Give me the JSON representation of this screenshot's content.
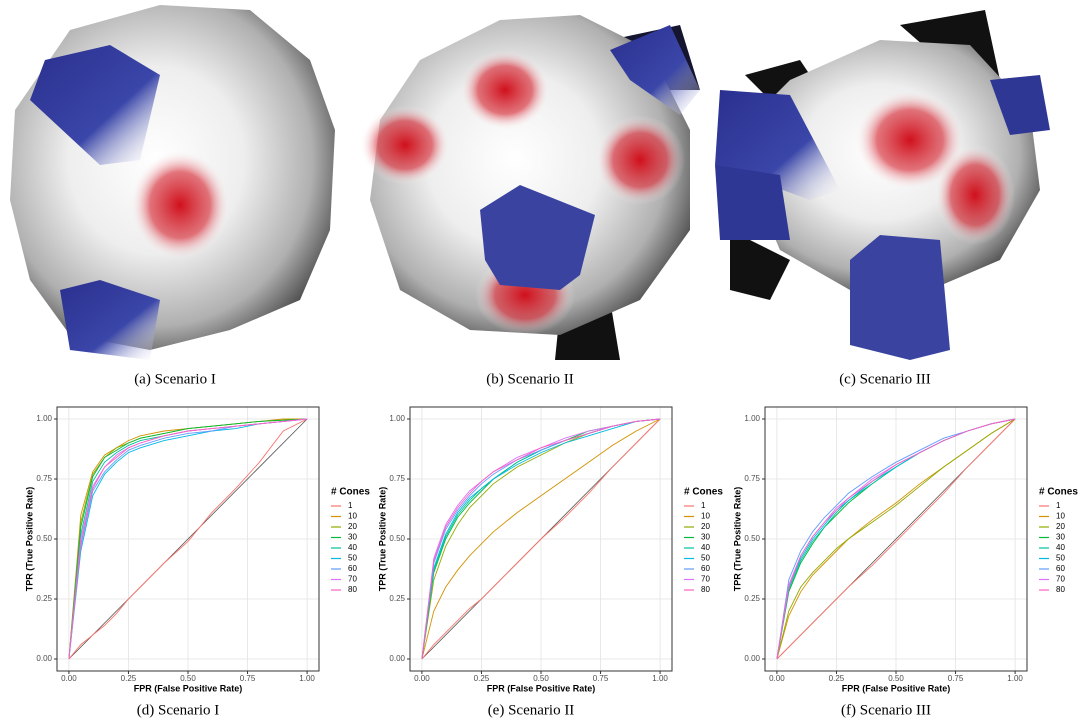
{
  "figures": [
    {
      "caption": "(a) Scenario I"
    },
    {
      "caption": "(b) Scenario II"
    },
    {
      "caption": "(c) Scenario III"
    }
  ],
  "chart_data": [
    {
      "type": "line",
      "caption": "(d) Scenario I",
      "x_label": "FPR (False Positive Rate)",
      "y_label": "TPR (True Positive Rate)",
      "legend_title": "# Cones",
      "legend": "right",
      "grid": true,
      "xlim": [
        -0.05,
        1.05
      ],
      "ylim": [
        -0.05,
        1.05
      ],
      "xticks": [
        {
          "value": 0,
          "label": "0.00"
        },
        {
          "value": 0.25,
          "label": "0.25"
        },
        {
          "value": 0.5,
          "label": "0.50"
        },
        {
          "value": 0.75,
          "label": "0.75"
        },
        {
          "value": 1,
          "label": "1.00"
        }
      ],
      "yticks": [
        {
          "value": 0,
          "label": "0.00"
        },
        {
          "value": 0.25,
          "label": "0.25"
        },
        {
          "value": 0.5,
          "label": "0.50"
        },
        {
          "value": 0.75,
          "label": "0.75"
        },
        {
          "value": 1,
          "label": "1.00"
        }
      ],
      "x": [
        0,
        0.05,
        0.1,
        0.15,
        0.2,
        0.25,
        0.3,
        0.4,
        0.5,
        0.6,
        0.7,
        0.8,
        0.9,
        1
      ],
      "series": [
        {
          "name": "1",
          "color": "#F8766D",
          "values": [
            0,
            0.06,
            0.1,
            0.14,
            0.19,
            0.25,
            0.3,
            0.4,
            0.49,
            0.61,
            0.71,
            0.82,
            0.95,
            1
          ]
        },
        {
          "name": "10",
          "color": "#D39200",
          "values": [
            0,
            0.6,
            0.78,
            0.85,
            0.88,
            0.91,
            0.93,
            0.95,
            0.96,
            0.97,
            0.98,
            0.99,
            1,
            1
          ]
        },
        {
          "name": "20",
          "color": "#93AA00",
          "values": [
            0,
            0.57,
            0.77,
            0.84,
            0.88,
            0.9,
            0.92,
            0.94,
            0.96,
            0.97,
            0.98,
            0.99,
            0.995,
            1
          ]
        },
        {
          "name": "30",
          "color": "#00BA38",
          "values": [
            0,
            0.55,
            0.76,
            0.84,
            0.87,
            0.9,
            0.92,
            0.94,
            0.96,
            0.97,
            0.98,
            0.99,
            0.995,
            1
          ]
        },
        {
          "name": "40",
          "color": "#00C19F",
          "values": [
            0,
            0.52,
            0.74,
            0.82,
            0.86,
            0.89,
            0.91,
            0.93,
            0.95,
            0.96,
            0.97,
            0.98,
            0.99,
            1
          ]
        },
        {
          "name": "50",
          "color": "#00B9E3",
          "values": [
            0,
            0.45,
            0.68,
            0.77,
            0.82,
            0.86,
            0.88,
            0.91,
            0.93,
            0.95,
            0.96,
            0.98,
            0.99,
            1
          ]
        },
        {
          "name": "60",
          "color": "#619CFF",
          "values": [
            0,
            0.47,
            0.7,
            0.78,
            0.83,
            0.87,
            0.89,
            0.92,
            0.94,
            0.95,
            0.97,
            0.98,
            0.99,
            1
          ]
        },
        {
          "name": "70",
          "color": "#DB72FB",
          "values": [
            0,
            0.5,
            0.72,
            0.8,
            0.85,
            0.88,
            0.9,
            0.93,
            0.95,
            0.96,
            0.97,
            0.98,
            0.99,
            1
          ]
        },
        {
          "name": "80",
          "color": "#FF61C3",
          "values": [
            0,
            0.48,
            0.71,
            0.8,
            0.84,
            0.88,
            0.9,
            0.93,
            0.95,
            0.96,
            0.97,
            0.98,
            0.99,
            1
          ]
        }
      ]
    },
    {
      "type": "line",
      "caption": "(e) Scenario II",
      "x_label": "FPR (False Positive Rate)",
      "y_label": "TPR (True Positive Rate)",
      "legend_title": "# Cones",
      "legend": "right",
      "grid": true,
      "xlim": [
        -0.05,
        1.05
      ],
      "ylim": [
        -0.05,
        1.05
      ],
      "xticks": [
        {
          "value": 0,
          "label": "0.00"
        },
        {
          "value": 0.25,
          "label": "0.25"
        },
        {
          "value": 0.5,
          "label": "0.50"
        },
        {
          "value": 0.75,
          "label": "0.75"
        },
        {
          "value": 1,
          "label": "1.00"
        }
      ],
      "yticks": [
        {
          "value": 0,
          "label": "0.00"
        },
        {
          "value": 0.25,
          "label": "0.25"
        },
        {
          "value": 0.5,
          "label": "0.50"
        },
        {
          "value": 0.75,
          "label": "0.75"
        },
        {
          "value": 1,
          "label": "1.00"
        }
      ],
      "x": [
        0,
        0.05,
        0.1,
        0.15,
        0.2,
        0.25,
        0.3,
        0.4,
        0.5,
        0.6,
        0.7,
        0.8,
        0.9,
        1
      ],
      "series": [
        {
          "name": "1",
          "color": "#F8766D",
          "values": [
            0,
            0.06,
            0.11,
            0.16,
            0.21,
            0.25,
            0.3,
            0.4,
            0.5,
            0.59,
            0.69,
            0.8,
            0.9,
            1
          ]
        },
        {
          "name": "10",
          "color": "#D39200",
          "values": [
            0,
            0.2,
            0.3,
            0.37,
            0.43,
            0.48,
            0.53,
            0.61,
            0.68,
            0.75,
            0.82,
            0.89,
            0.95,
            1
          ]
        },
        {
          "name": "20",
          "color": "#93AA00",
          "values": [
            0,
            0.33,
            0.47,
            0.56,
            0.63,
            0.68,
            0.73,
            0.8,
            0.85,
            0.9,
            0.94,
            0.97,
            0.99,
            1
          ]
        },
        {
          "name": "30",
          "color": "#00BA38",
          "values": [
            0,
            0.36,
            0.5,
            0.59,
            0.65,
            0.7,
            0.75,
            0.82,
            0.87,
            0.91,
            0.95,
            0.97,
            0.99,
            1
          ]
        },
        {
          "name": "40",
          "color": "#00C19F",
          "values": [
            0,
            0.37,
            0.51,
            0.6,
            0.66,
            0.71,
            0.75,
            0.82,
            0.87,
            0.91,
            0.94,
            0.97,
            0.99,
            1
          ]
        },
        {
          "name": "50",
          "color": "#00B9E3",
          "values": [
            0,
            0.38,
            0.52,
            0.61,
            0.67,
            0.71,
            0.75,
            0.81,
            0.86,
            0.9,
            0.93,
            0.96,
            0.99,
            1
          ]
        },
        {
          "name": "60",
          "color": "#619CFF",
          "values": [
            0,
            0.4,
            0.54,
            0.62,
            0.68,
            0.73,
            0.77,
            0.83,
            0.87,
            0.91,
            0.94,
            0.97,
            0.99,
            1
          ]
        },
        {
          "name": "70",
          "color": "#DB72FB",
          "values": [
            0,
            0.42,
            0.56,
            0.64,
            0.7,
            0.74,
            0.78,
            0.84,
            0.88,
            0.92,
            0.95,
            0.97,
            0.99,
            1
          ]
        },
        {
          "name": "80",
          "color": "#FF61C3",
          "values": [
            0,
            0.41,
            0.55,
            0.63,
            0.69,
            0.74,
            0.78,
            0.83,
            0.88,
            0.91,
            0.94,
            0.97,
            0.99,
            1
          ]
        }
      ]
    },
    {
      "type": "line",
      "caption": "(f) Scenario III",
      "x_label": "FPR (False Positive Rate)",
      "y_label": "TPR (True Positive Rate)",
      "legend_title": "# Cones",
      "legend": "right",
      "grid": true,
      "xlim": [
        -0.05,
        1.05
      ],
      "ylim": [
        -0.05,
        1.05
      ],
      "xticks": [
        {
          "value": 0,
          "label": "0.00"
        },
        {
          "value": 0.25,
          "label": "0.25"
        },
        {
          "value": 0.5,
          "label": "0.50"
        },
        {
          "value": 0.75,
          "label": "0.75"
        },
        {
          "value": 1,
          "label": "1.00"
        }
      ],
      "yticks": [
        {
          "value": 0,
          "label": "0.00"
        },
        {
          "value": 0.25,
          "label": "0.25"
        },
        {
          "value": 0.5,
          "label": "0.50"
        },
        {
          "value": 0.75,
          "label": "0.75"
        },
        {
          "value": 1,
          "label": "1.00"
        }
      ],
      "x": [
        0,
        0.05,
        0.1,
        0.15,
        0.2,
        0.25,
        0.3,
        0.4,
        0.5,
        0.6,
        0.7,
        0.8,
        0.9,
        1
      ],
      "series": [
        {
          "name": "1",
          "color": "#F8766D",
          "values": [
            0,
            0.05,
            0.1,
            0.15,
            0.2,
            0.25,
            0.3,
            0.39,
            0.49,
            0.59,
            0.69,
            0.8,
            0.9,
            1
          ]
        },
        {
          "name": "10",
          "color": "#D39200",
          "values": [
            0,
            0.18,
            0.28,
            0.35,
            0.4,
            0.45,
            0.5,
            0.58,
            0.65,
            0.73,
            0.8,
            0.87,
            0.94,
            1
          ]
        },
        {
          "name": "20",
          "color": "#93AA00",
          "values": [
            0,
            0.2,
            0.3,
            0.36,
            0.41,
            0.46,
            0.5,
            0.57,
            0.64,
            0.72,
            0.8,
            0.87,
            0.94,
            1
          ]
        },
        {
          "name": "30",
          "color": "#00BA38",
          "values": [
            0,
            0.28,
            0.4,
            0.48,
            0.55,
            0.6,
            0.65,
            0.73,
            0.8,
            0.86,
            0.91,
            0.95,
            0.98,
            1
          ]
        },
        {
          "name": "40",
          "color": "#00C19F",
          "values": [
            0,
            0.29,
            0.41,
            0.49,
            0.55,
            0.61,
            0.66,
            0.73,
            0.8,
            0.86,
            0.91,
            0.95,
            0.98,
            1
          ]
        },
        {
          "name": "50",
          "color": "#00B9E3",
          "values": [
            0,
            0.3,
            0.42,
            0.5,
            0.56,
            0.62,
            0.66,
            0.74,
            0.8,
            0.86,
            0.91,
            0.95,
            0.98,
            1
          ]
        },
        {
          "name": "60",
          "color": "#619CFF",
          "values": [
            0,
            0.33,
            0.45,
            0.53,
            0.59,
            0.64,
            0.69,
            0.76,
            0.82,
            0.87,
            0.92,
            0.95,
            0.98,
            1
          ]
        },
        {
          "name": "70",
          "color": "#DB72FB",
          "values": [
            0,
            0.31,
            0.43,
            0.51,
            0.57,
            0.63,
            0.67,
            0.75,
            0.81,
            0.86,
            0.91,
            0.95,
            0.98,
            1
          ]
        },
        {
          "name": "80",
          "color": "#FF61C3",
          "values": [
            0,
            0.3,
            0.43,
            0.51,
            0.57,
            0.62,
            0.67,
            0.74,
            0.81,
            0.86,
            0.91,
            0.95,
            0.98,
            1
          ]
        }
      ]
    }
  ]
}
